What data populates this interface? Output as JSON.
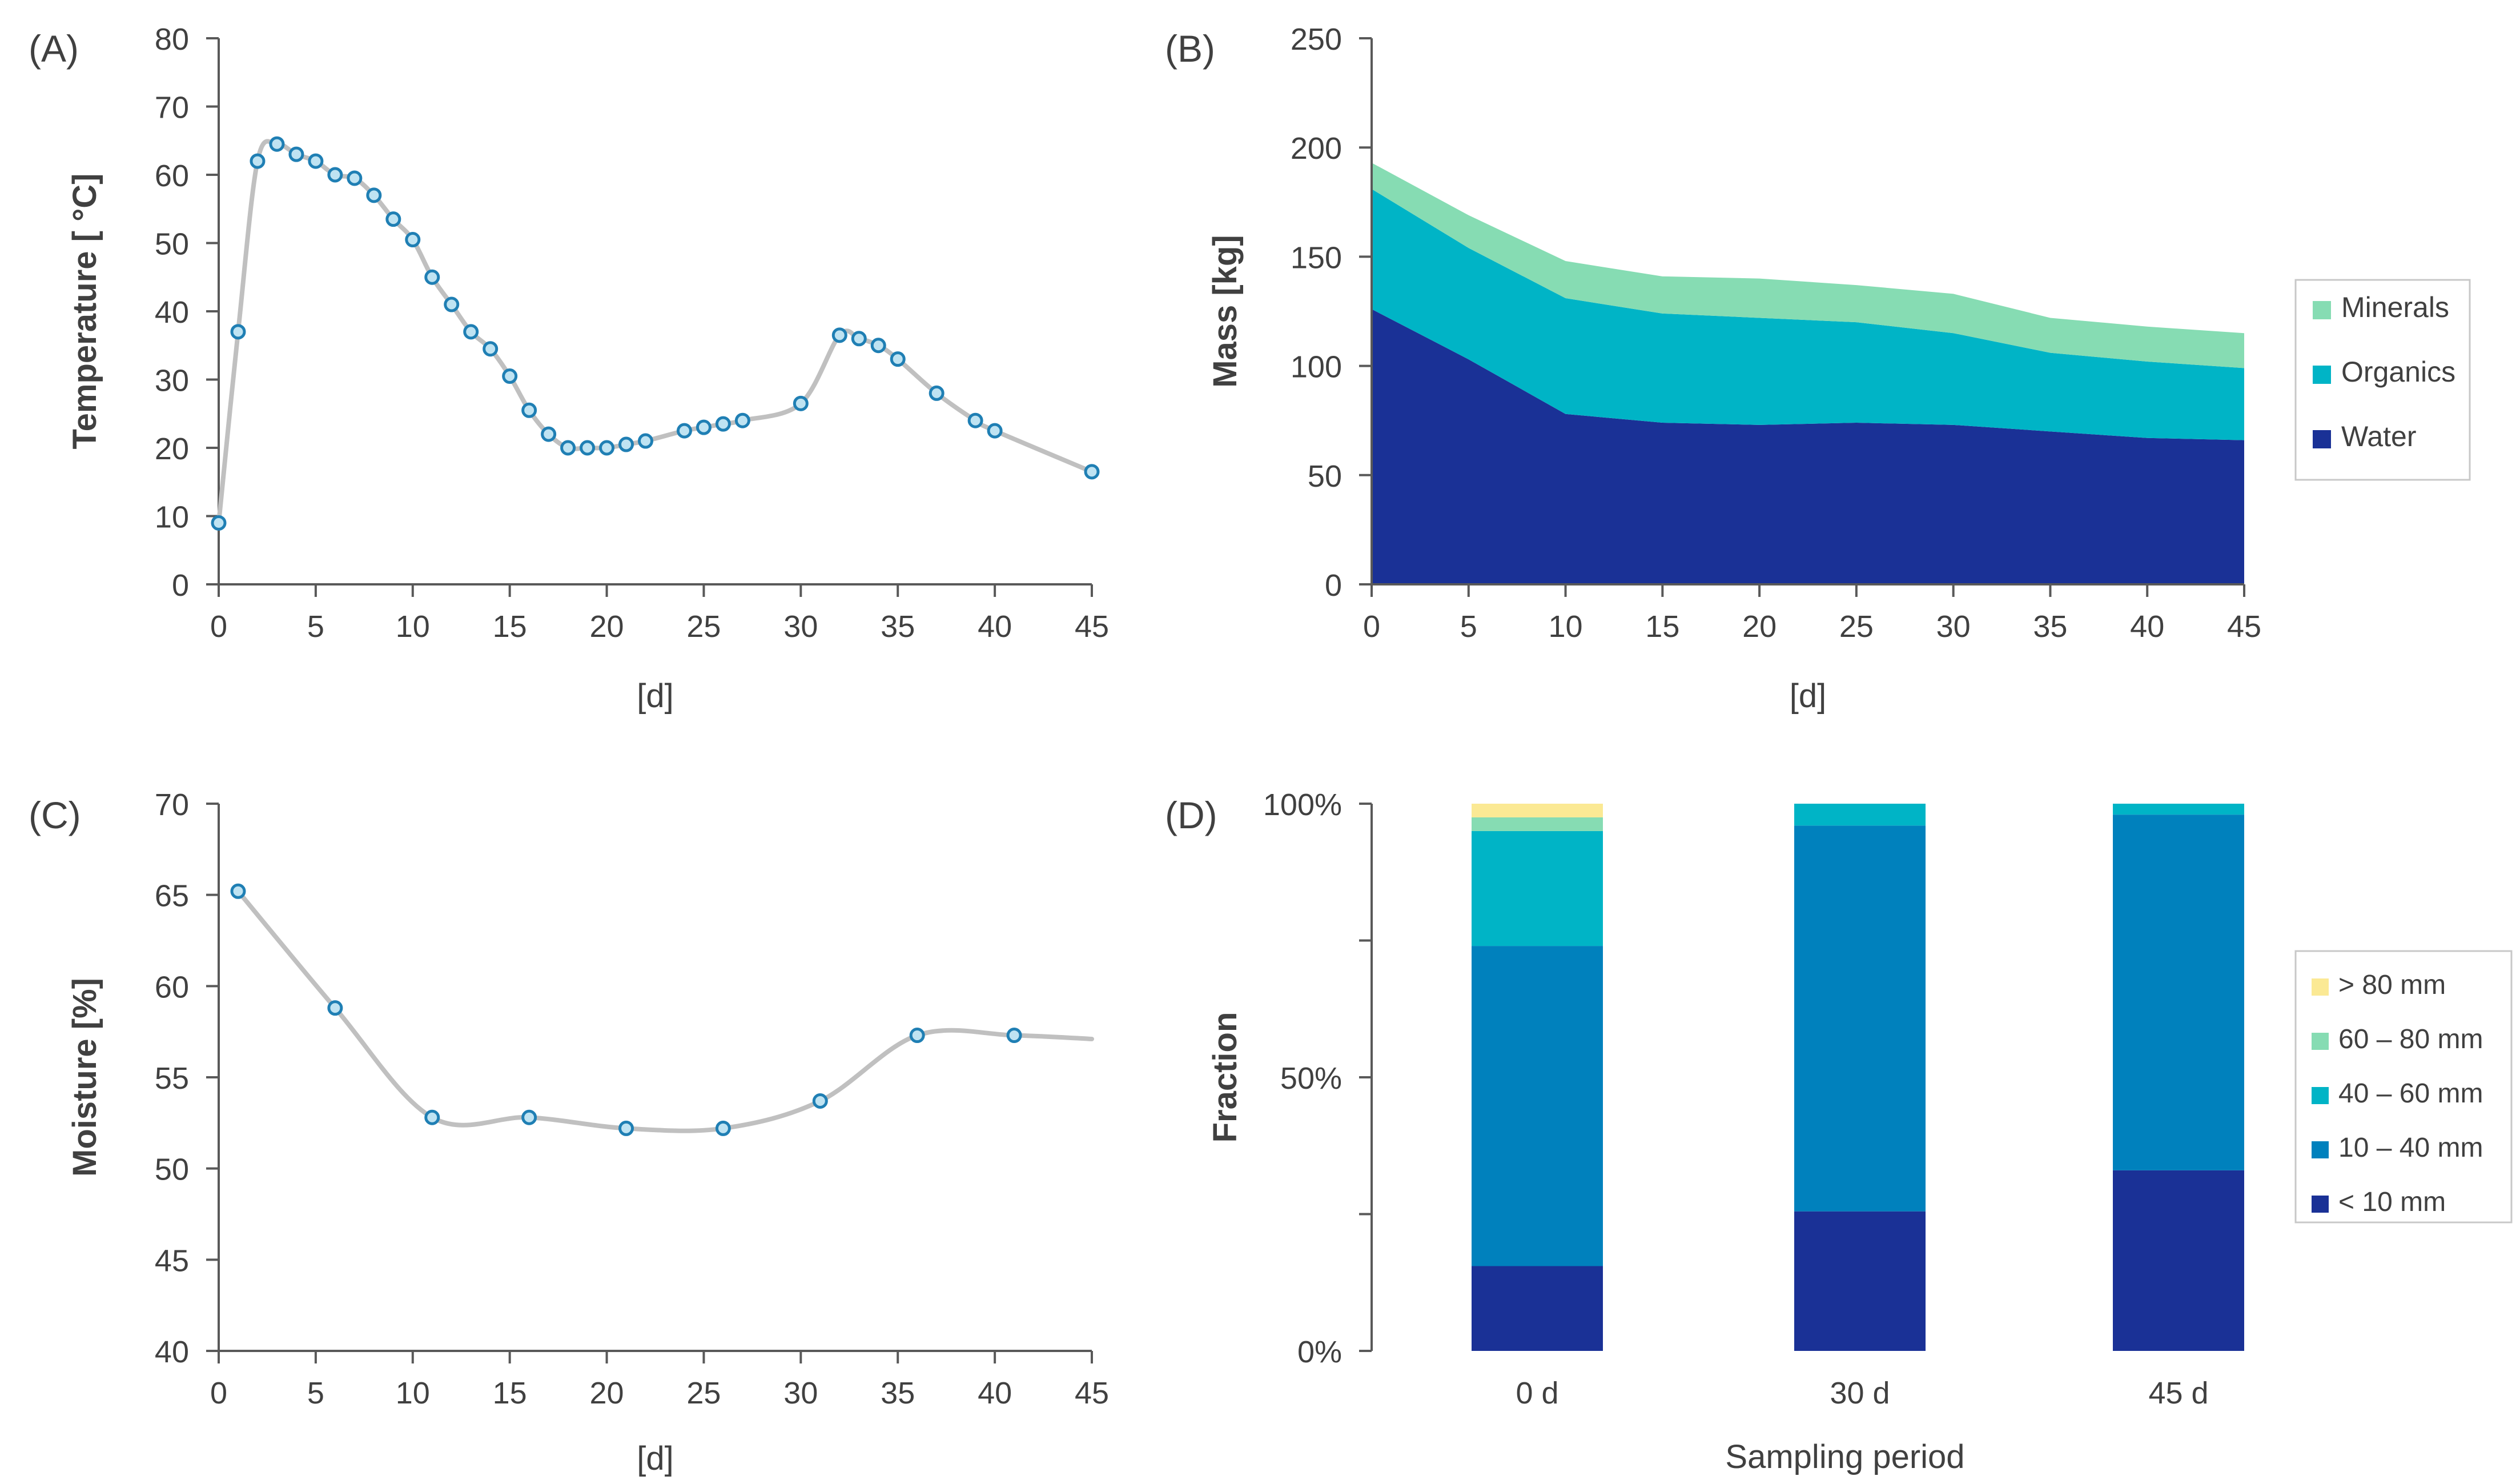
{
  "colors": {
    "axis": "#595959",
    "text": "#404040",
    "line": "#c0c0c0",
    "marker_fill": "#bfe3f2",
    "marker_stroke": "#1f7fb4",
    "water": "#1a3196",
    "organics": "#00b4c6",
    "minerals": "#86dcb3",
    "lt10": "#1a3196",
    "s10_40": "#0081bd",
    "s40_60": "#00b4c6",
    "s60_80": "#86dcb3",
    "gt80": "#fbe994"
  },
  "chart_data": [
    {
      "id": "A",
      "panel_label": "(A)",
      "type": "line",
      "xlabel": "[d]",
      "ylabel": "Temperature [ °C]",
      "xlim": [
        0,
        45
      ],
      "ylim": [
        0,
        80
      ],
      "xticks": [
        "0",
        "5",
        "10",
        "15",
        "20",
        "25",
        "30",
        "35",
        "40",
        "45"
      ],
      "yticks": [
        "0",
        "10",
        "20",
        "30",
        "40",
        "50",
        "60",
        "70",
        "80"
      ],
      "x": [
        0,
        1,
        2,
        3,
        4,
        5,
        6,
        7,
        8,
        9,
        10,
        11,
        12,
        13,
        14,
        15,
        16,
        17,
        18,
        19,
        20,
        21,
        22,
        24,
        25,
        26,
        27,
        30,
        32,
        33,
        34,
        35,
        37,
        39,
        40,
        45
      ],
      "y": [
        9,
        37,
        62,
        64.5,
        63,
        62,
        60,
        59.5,
        57,
        53.5,
        50.5,
        45,
        41,
        37,
        34.5,
        30.5,
        25.5,
        22,
        20,
        20,
        20,
        20.5,
        21,
        22.5,
        23,
        23.5,
        24,
        26.5,
        36.5,
        36,
        35,
        33,
        28,
        24,
        22.5,
        16.5
      ]
    },
    {
      "id": "B",
      "panel_label": "(B)",
      "type": "area",
      "stacked": true,
      "xlabel": "[d]",
      "ylabel": "Mass [kg]",
      "xlim": [
        0,
        45
      ],
      "ylim": [
        0,
        250
      ],
      "xticks": [
        "0",
        "5",
        "10",
        "15",
        "20",
        "25",
        "30",
        "35",
        "40",
        "45"
      ],
      "yticks": [
        "0",
        "50",
        "100",
        "150",
        "200",
        "250"
      ],
      "x": [
        0,
        5,
        10,
        15,
        20,
        25,
        30,
        35,
        40,
        45
      ],
      "series": [
        {
          "name": "Water",
          "color_key": "water",
          "values": [
            126,
            103,
            78,
            74,
            73,
            74,
            73,
            70,
            67,
            66
          ]
        },
        {
          "name": "Organics",
          "color_key": "organics",
          "values": [
            55,
            51,
            53,
            50,
            49,
            46,
            42,
            36,
            35,
            33
          ]
        },
        {
          "name": "Minerals",
          "color_key": "minerals",
          "values": [
            12,
            15,
            17,
            17,
            18,
            17,
            18,
            16,
            16,
            16
          ]
        }
      ],
      "legend": [
        "Minerals",
        "Organics",
        "Water"
      ],
      "legend_position": "right"
    },
    {
      "id": "C",
      "panel_label": "(C)",
      "type": "line",
      "xlabel": "[d]",
      "ylabel": "Moisture [%]",
      "xlim": [
        0,
        45
      ],
      "ylim": [
        40,
        70
      ],
      "xticks": [
        "0",
        "5",
        "10",
        "15",
        "20",
        "25",
        "30",
        "35",
        "40",
        "45"
      ],
      "yticks": [
        "40",
        "45",
        "50",
        "55",
        "60",
        "65",
        "70"
      ],
      "x": [
        1,
        6,
        11,
        16,
        21,
        26,
        31,
        36,
        41
      ],
      "y": [
        65.2,
        58.8,
        52.8,
        52.8,
        52.2,
        52.2,
        53.7,
        57.3,
        57.3
      ],
      "curve_end": [
        45,
        57.1
      ]
    },
    {
      "id": "D",
      "panel_label": "(D)",
      "type": "bar",
      "stacked": true,
      "xlabel": "Sampling period",
      "ylabel": "Fraction",
      "ylim": [
        0,
        100
      ],
      "yticks": [
        "0%",
        "50%",
        "100%"
      ],
      "categories": [
        "0 d",
        "30 d",
        "45 d"
      ],
      "series": [
        {
          "name": "< 10 mm",
          "color_key": "lt10",
          "values": [
            15.5,
            25.5,
            33
          ]
        },
        {
          "name": "10 – 40 mm",
          "color_key": "s10_40",
          "values": [
            58.5,
            70.5,
            65
          ]
        },
        {
          "name": "40 – 60 mm",
          "color_key": "s40_60",
          "values": [
            21,
            4,
            2
          ]
        },
        {
          "name": "60 – 80 mm",
          "color_key": "s60_80",
          "values": [
            2.5,
            0,
            0
          ]
        },
        {
          "name": "> 80 mm",
          "color_key": "gt80",
          "values": [
            2.5,
            0,
            0
          ]
        }
      ],
      "legend": [
        "> 80 mm",
        "60 – 80 mm",
        "40 – 60 mm",
        "10 – 40 mm",
        "< 10 mm"
      ],
      "legend_position": "right"
    }
  ]
}
